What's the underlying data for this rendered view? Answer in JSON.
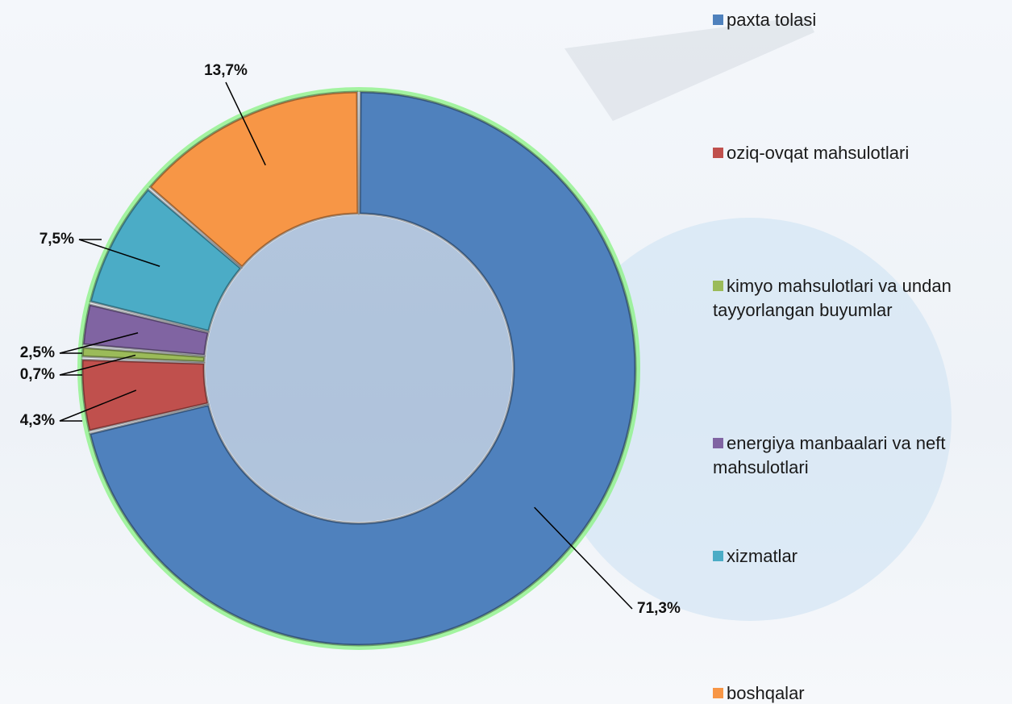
{
  "chart_data": {
    "type": "donut",
    "categories": [
      "paxta tolasi",
      "oziq-ovqat mahsulotlari",
      "kimyo mahsulotlari va undan tayyorlangan buyumlar",
      "energiya manbaalari va neft mahsulotlari",
      "xizmatlar",
      "boshqalar"
    ],
    "values": [
      71.3,
      4.3,
      0.7,
      2.5,
      7.5,
      13.7
    ],
    "value_labels": [
      "71,3%",
      "4,3%",
      "0,7%",
      "2,5%",
      "7,5%",
      "13,7%"
    ],
    "colors": [
      "#4f81bd",
      "#c0504d",
      "#9bbb59",
      "#8064a2",
      "#4bacc6",
      "#f79646"
    ],
    "legend": "right"
  }
}
